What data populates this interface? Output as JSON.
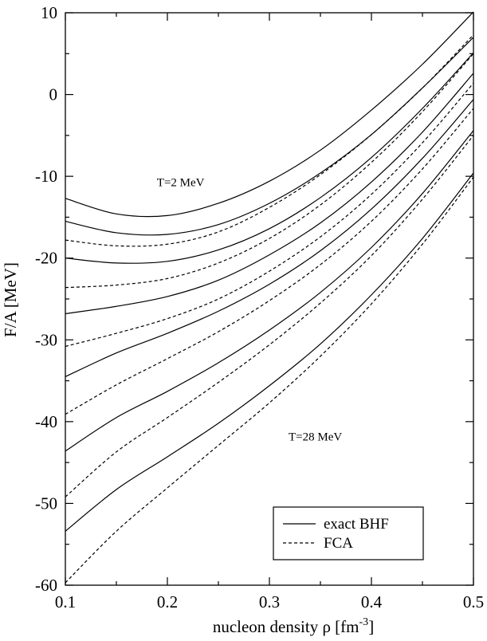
{
  "chart_data": {
    "type": "line",
    "xlabel": "nucleon density  ρ [fm",
    "xlabel_sup": "-3",
    "xlabel_close": "]",
    "ylabel": "F/A [MeV]",
    "xlim": [
      0.1,
      0.5
    ],
    "ylim": [
      -60,
      10
    ],
    "x_ticks": [
      0.1,
      0.2,
      0.3,
      0.4,
      0.5
    ],
    "x_tick_labels": [
      "0.1",
      "0.2",
      "0.3",
      "0.4",
      "0.5"
    ],
    "y_ticks": [
      -60,
      -50,
      -40,
      -30,
      -20,
      -10,
      0,
      10
    ],
    "y_tick_labels": [
      "-60",
      "-50",
      "-40",
      "-30",
      "-20",
      "-10",
      "0",
      "10"
    ],
    "annotations": [
      {
        "text": "T=2 MeV",
        "x": 0.213,
        "y": -11.2
      },
      {
        "text": "T=28 MeV",
        "x": 0.345,
        "y": -42.3
      }
    ],
    "legend": {
      "position": "bottom-right",
      "entries": [
        {
          "label": "exact BHF",
          "style": "solid"
        },
        {
          "label": "FCA",
          "style": "dashed"
        }
      ]
    },
    "x": [
      0.1,
      0.15,
      0.2,
      0.25,
      0.3,
      0.35,
      0.4,
      0.45,
      0.5
    ],
    "series": [
      {
        "style": "solid",
        "values": [
          -12.7,
          -14.6,
          -14.8,
          -13.3,
          -10.6,
          -6.8,
          -1.9,
          3.7,
          10.1
        ]
      },
      {
        "style": "solid",
        "values": [
          -15.5,
          -16.9,
          -17.1,
          -15.9,
          -13.3,
          -9.6,
          -4.9,
          0.8,
          7.0
        ]
      },
      {
        "style": "dashed",
        "values": [
          -17.8,
          -18.5,
          -18.3,
          -16.8,
          -13.8,
          -9.8,
          -4.9,
          0.8,
          7.3
        ]
      },
      {
        "style": "solid",
        "values": [
          -20.0,
          -20.6,
          -20.4,
          -19.0,
          -16.4,
          -12.6,
          -7.7,
          -1.7,
          5.1
        ]
      },
      {
        "style": "dashed",
        "values": [
          -23.6,
          -23.3,
          -22.5,
          -20.6,
          -17.6,
          -13.5,
          -8.3,
          -2.1,
          5.0
        ]
      },
      {
        "style": "solid",
        "values": [
          -26.8,
          -25.9,
          -24.7,
          -22.7,
          -19.6,
          -15.7,
          -10.7,
          -4.6,
          2.6
        ]
      },
      {
        "style": "dashed",
        "values": [
          -30.8,
          -29.2,
          -27.4,
          -25.0,
          -21.6,
          -17.4,
          -12.2,
          -5.9,
          1.4
        ]
      },
      {
        "style": "solid",
        "values": [
          -34.5,
          -31.6,
          -29.2,
          -26.5,
          -23.2,
          -19.1,
          -14.0,
          -7.8,
          -0.6
        ]
      },
      {
        "style": "dashed",
        "values": [
          -39.1,
          -35.5,
          -32.3,
          -29.0,
          -25.2,
          -20.8,
          -15.5,
          -9.1,
          -1.7
        ]
      },
      {
        "style": "solid",
        "values": [
          -43.6,
          -39.5,
          -36.3,
          -32.8,
          -28.8,
          -24.2,
          -18.7,
          -12.1,
          -4.4
        ]
      },
      {
        "style": "dashed",
        "values": [
          -49.2,
          -43.7,
          -39.5,
          -35.2,
          -30.6,
          -25.5,
          -19.7,
          -12.8,
          -5.0
        ]
      },
      {
        "style": "solid",
        "values": [
          -53.4,
          -48.3,
          -44.3,
          -40.2,
          -35.6,
          -30.5,
          -24.5,
          -17.6,
          -9.6
        ]
      },
      {
        "style": "dashed",
        "values": [
          -59.7,
          -53.4,
          -48.1,
          -42.9,
          -37.7,
          -32.0,
          -25.6,
          -18.3,
          -10.1
        ]
      }
    ]
  }
}
